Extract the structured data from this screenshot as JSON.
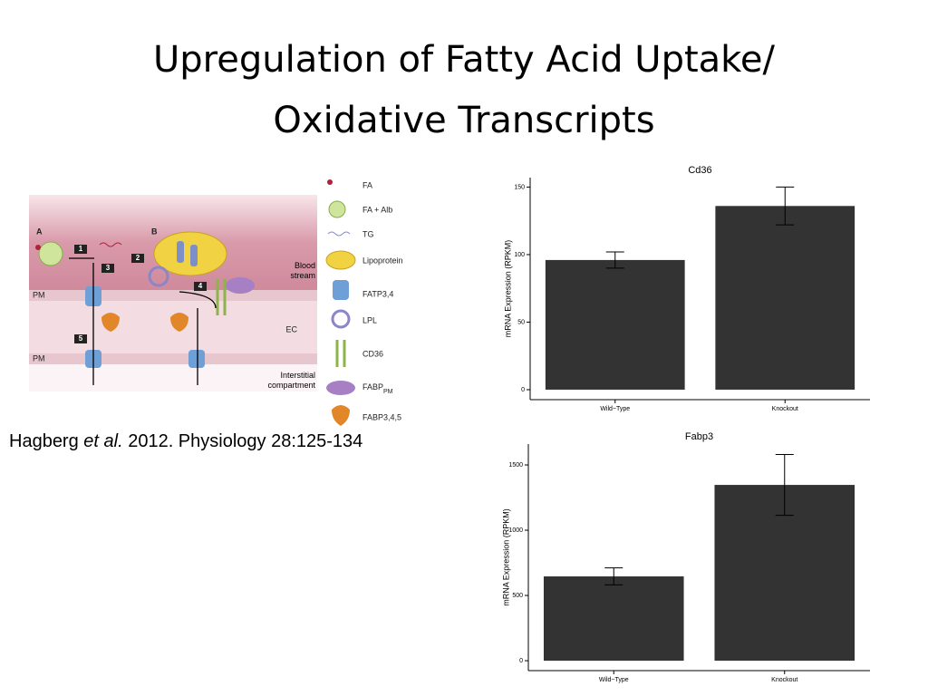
{
  "title": [
    "Upregulation of Fatty Acid Uptake/",
    "Oxidative Transcripts"
  ],
  "citation": {
    "authors": "Hagberg",
    "etal": "et al.",
    "rest": "2012.  Physiology 28:125-134"
  },
  "diagram": {
    "panels": [
      "A",
      "B"
    ],
    "steps": [
      "1",
      "2",
      "3",
      "4",
      "5"
    ],
    "regions": [
      "PM",
      "PM",
      "Blood stream",
      "EC",
      "Interstitial compartment"
    ],
    "legend": [
      "FA",
      "FA + Alb",
      "TG",
      "Lipoprotein",
      "FATP3,4",
      "LPL",
      "CD36",
      {
        "text": "FABP",
        "sub": "PM"
      },
      "FABP3,4,5"
    ]
  },
  "chart_data": [
    {
      "type": "bar",
      "title": "Cd36",
      "y_label": "mRNA Expression (RPKM)",
      "categories": [
        "Wild−Type",
        "Knockout"
      ],
      "values": [
        96,
        136
      ],
      "errors": [
        6,
        14
      ],
      "color": "#333333",
      "ylim": [
        -7.4,
        157
      ],
      "yticks": [
        0,
        50,
        100,
        150
      ]
    },
    {
      "type": "bar",
      "title": "Fabp3",
      "y_label": "mRNA Expression (RPKM)",
      "categories": [
        "Wild−Type",
        "Knockout"
      ],
      "values": [
        646,
        1347
      ],
      "errors": [
        65,
        233
      ],
      "color": "#333333",
      "ylim": [
        -76,
        1660
      ],
      "yticks": [
        0,
        500,
        1000,
        1500
      ]
    }
  ]
}
